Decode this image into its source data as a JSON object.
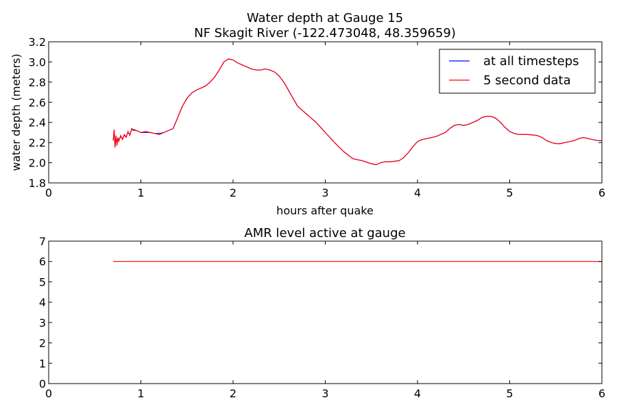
{
  "chart_data": [
    {
      "type": "line",
      "title_line1": "Water depth at Gauge 15",
      "title_line2": "NF Skagit River  (-122.473048, 48.359659)",
      "xlabel": "hours after quake",
      "ylabel": "water depth (meters)",
      "xlim": [
        0,
        6
      ],
      "ylim": [
        1.8,
        3.2
      ],
      "xticks": [
        0,
        1,
        2,
        3,
        4,
        5,
        6
      ],
      "yticks": [
        1.8,
        2.0,
        2.2,
        2.4,
        2.6,
        2.8,
        3.0,
        3.2
      ],
      "grid": false,
      "legend_position": "top-right",
      "series": [
        {
          "name": "at all timesteps",
          "color": "#0000ff",
          "x": [
            0.7,
            0.71,
            0.72,
            0.73,
            0.74,
            0.75,
            0.76,
            0.78,
            0.8,
            0.82,
            0.84,
            0.86,
            0.88,
            0.9,
            0.92,
            0.95,
            1.0,
            1.05,
            1.1,
            1.15,
            1.2,
            1.25,
            1.3,
            1.35,
            1.4,
            1.45,
            1.5,
            1.55,
            1.6,
            1.65,
            1.7,
            1.75,
            1.8,
            1.85,
            1.9,
            1.95,
            2.0,
            2.05,
            2.1,
            2.15,
            2.2,
            2.25,
            2.3,
            2.35,
            2.4,
            2.45,
            2.5,
            2.55,
            2.6,
            2.65,
            2.7,
            2.8,
            2.9,
            3.0,
            3.1,
            3.2,
            3.3,
            3.35,
            3.4,
            3.5,
            3.55,
            3.6,
            3.65,
            3.7,
            3.8,
            3.85,
            3.9,
            3.95,
            4.0,
            4.05,
            4.1,
            4.2,
            4.3,
            4.35,
            4.4,
            4.45,
            4.5,
            4.55,
            4.6,
            4.65,
            4.7,
            4.75,
            4.8,
            4.85,
            4.9,
            4.95,
            5.0,
            5.05,
            5.1,
            5.2,
            5.3,
            5.35,
            5.4,
            5.45,
            5.5,
            5.55,
            5.6,
            5.65,
            5.7,
            5.75,
            5.8,
            5.85,
            5.9,
            5.95,
            6.0
          ],
          "y": [
            2.22,
            2.32,
            2.16,
            2.26,
            2.18,
            2.25,
            2.22,
            2.26,
            2.24,
            2.27,
            2.26,
            2.3,
            2.28,
            2.33,
            2.33,
            2.32,
            2.3,
            2.3,
            2.3,
            2.29,
            2.29,
            2.3,
            2.32,
            2.34,
            2.45,
            2.56,
            2.64,
            2.69,
            2.72,
            2.74,
            2.76,
            2.8,
            2.85,
            2.92,
            3.0,
            3.03,
            3.02,
            2.99,
            2.97,
            2.95,
            2.93,
            2.92,
            2.92,
            2.93,
            2.92,
            2.9,
            2.86,
            2.8,
            2.72,
            2.64,
            2.56,
            2.48,
            2.4,
            2.3,
            2.2,
            2.11,
            2.04,
            2.03,
            2.02,
            1.99,
            1.98,
            2.0,
            2.01,
            2.01,
            2.02,
            2.05,
            2.1,
            2.16,
            2.21,
            2.23,
            2.24,
            2.26,
            2.3,
            2.34,
            2.37,
            2.38,
            2.37,
            2.38,
            2.4,
            2.42,
            2.45,
            2.46,
            2.46,
            2.44,
            2.4,
            2.35,
            2.31,
            2.29,
            2.28,
            2.28,
            2.27,
            2.25,
            2.22,
            2.2,
            2.19,
            2.19,
            2.2,
            2.21,
            2.22,
            2.24,
            2.25,
            2.24,
            2.23,
            2.22,
            2.22
          ]
        },
        {
          "name": "5 second data",
          "color": "#ff0000",
          "x": [
            0.7,
            0.71,
            0.72,
            0.73,
            0.74,
            0.75,
            0.76,
            0.78,
            0.8,
            0.82,
            0.84,
            0.86,
            0.88,
            0.9,
            0.92,
            0.95,
            1.0,
            1.05,
            1.1,
            1.15,
            1.2,
            1.25,
            1.3,
            1.35,
            1.4,
            1.45,
            1.5,
            1.55,
            1.6,
            1.65,
            1.7,
            1.75,
            1.8,
            1.85,
            1.9,
            1.95,
            2.0,
            2.05,
            2.1,
            2.15,
            2.2,
            2.25,
            2.3,
            2.35,
            2.4,
            2.45,
            2.5,
            2.55,
            2.6,
            2.65,
            2.7,
            2.8,
            2.9,
            3.0,
            3.1,
            3.2,
            3.3,
            3.35,
            3.4,
            3.5,
            3.55,
            3.6,
            3.65,
            3.7,
            3.8,
            3.85,
            3.9,
            3.95,
            4.0,
            4.05,
            4.1,
            4.2,
            4.3,
            4.35,
            4.4,
            4.45,
            4.5,
            4.55,
            4.6,
            4.65,
            4.7,
            4.75,
            4.8,
            4.85,
            4.9,
            4.95,
            5.0,
            5.05,
            5.1,
            5.2,
            5.3,
            5.35,
            5.4,
            5.45,
            5.5,
            5.55,
            5.6,
            5.65,
            5.7,
            5.75,
            5.8,
            5.85,
            5.9,
            5.95,
            6.0
          ],
          "y": [
            2.22,
            2.33,
            2.15,
            2.27,
            2.17,
            2.25,
            2.21,
            2.27,
            2.23,
            2.28,
            2.25,
            2.31,
            2.27,
            2.34,
            2.32,
            2.32,
            2.3,
            2.31,
            2.3,
            2.29,
            2.28,
            2.3,
            2.32,
            2.34,
            2.45,
            2.56,
            2.64,
            2.69,
            2.72,
            2.74,
            2.76,
            2.8,
            2.85,
            2.92,
            3.0,
            3.03,
            3.02,
            2.99,
            2.97,
            2.95,
            2.93,
            2.92,
            2.92,
            2.93,
            2.92,
            2.9,
            2.86,
            2.8,
            2.72,
            2.64,
            2.56,
            2.48,
            2.4,
            2.3,
            2.2,
            2.11,
            2.04,
            2.03,
            2.02,
            1.99,
            1.98,
            2.0,
            2.01,
            2.01,
            2.02,
            2.05,
            2.1,
            2.16,
            2.21,
            2.23,
            2.24,
            2.26,
            2.3,
            2.34,
            2.37,
            2.38,
            2.37,
            2.38,
            2.4,
            2.42,
            2.45,
            2.46,
            2.46,
            2.44,
            2.4,
            2.35,
            2.31,
            2.29,
            2.28,
            2.28,
            2.27,
            2.25,
            2.22,
            2.2,
            2.19,
            2.19,
            2.2,
            2.21,
            2.22,
            2.24,
            2.25,
            2.24,
            2.23,
            2.22,
            2.22
          ]
        }
      ]
    },
    {
      "type": "line",
      "title": "AMR level active at gauge",
      "xlim": [
        0,
        6
      ],
      "ylim": [
        0,
        7
      ],
      "xticks": [
        0,
        1,
        2,
        3,
        4,
        5,
        6
      ],
      "yticks": [
        0,
        1,
        2,
        3,
        4,
        5,
        6,
        7
      ],
      "grid": false,
      "series": [
        {
          "color": "#ff0000",
          "x": [
            0.7,
            6.0
          ],
          "y": [
            6,
            6
          ]
        }
      ]
    }
  ]
}
